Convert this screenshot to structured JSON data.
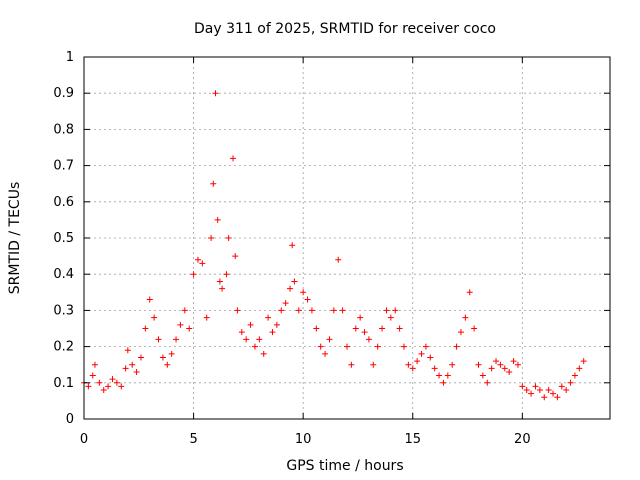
{
  "chart_data": {
    "type": "scatter",
    "title": "Day 311 of 2025, SRMTID for receiver coco",
    "xlabel": "GPS time / hours",
    "ylabel": "SRMTID / TECUs",
    "xlim": [
      0,
      24
    ],
    "ylim": [
      0,
      1
    ],
    "xticks": [
      0,
      5,
      10,
      15,
      20
    ],
    "xtick_labels": [
      "0",
      "5",
      "10",
      "15",
      "20"
    ],
    "yticks": [
      0,
      0.1,
      0.2,
      0.3,
      0.4,
      0.5,
      0.6,
      0.7,
      0.8,
      0.9,
      1
    ],
    "ytick_labels": [
      "0",
      "0.1",
      "0.2",
      "0.3",
      "0.4",
      "0.5",
      "0.6",
      "0.7",
      "0.8",
      "0.9",
      "1"
    ],
    "grid": true,
    "marker": "+",
    "color": "#ff0000",
    "series": [
      {
        "name": "SRMTID",
        "x": [
          0.0,
          0.2,
          0.4,
          0.5,
          0.7,
          0.9,
          1.1,
          1.3,
          1.5,
          1.7,
          1.9,
          2.0,
          2.2,
          2.4,
          2.6,
          2.8,
          3.0,
          3.2,
          3.4,
          3.6,
          3.8,
          4.0,
          4.2,
          4.4,
          4.6,
          4.8,
          5.0,
          5.2,
          5.4,
          5.6,
          5.8,
          5.9,
          6.0,
          6.1,
          6.2,
          6.3,
          6.5,
          6.6,
          6.8,
          6.9,
          7.0,
          7.2,
          7.4,
          7.6,
          7.8,
          8.0,
          8.2,
          8.4,
          8.6,
          8.8,
          9.0,
          9.2,
          9.4,
          9.5,
          9.6,
          9.8,
          10.0,
          10.2,
          10.4,
          10.6,
          10.8,
          11.0,
          11.2,
          11.4,
          11.6,
          11.8,
          12.0,
          12.2,
          12.4,
          12.6,
          12.8,
          13.0,
          13.2,
          13.4,
          13.6,
          13.8,
          14.0,
          14.2,
          14.4,
          14.6,
          14.8,
          15.0,
          15.2,
          15.4,
          15.6,
          15.8,
          16.0,
          16.2,
          16.4,
          16.6,
          16.8,
          17.0,
          17.2,
          17.4,
          17.6,
          17.8,
          18.0,
          18.2,
          18.4,
          18.6,
          18.8,
          19.0,
          19.2,
          19.4,
          19.6,
          19.8,
          20.0,
          20.2,
          20.4,
          20.6,
          20.8,
          21.0,
          21.2,
          21.4,
          21.6,
          21.8,
          22.0,
          22.2,
          22.4,
          22.6,
          22.8
        ],
        "y": [
          0.1,
          0.09,
          0.12,
          0.15,
          0.1,
          0.08,
          0.09,
          0.11,
          0.1,
          0.09,
          0.14,
          0.19,
          0.15,
          0.13,
          0.17,
          0.25,
          0.33,
          0.28,
          0.22,
          0.17,
          0.15,
          0.18,
          0.22,
          0.26,
          0.3,
          0.25,
          0.4,
          0.44,
          0.43,
          0.28,
          0.5,
          0.65,
          0.9,
          0.55,
          0.38,
          0.36,
          0.4,
          0.5,
          0.72,
          0.45,
          0.3,
          0.24,
          0.22,
          0.26,
          0.2,
          0.22,
          0.18,
          0.28,
          0.24,
          0.26,
          0.3,
          0.32,
          0.36,
          0.48,
          0.38,
          0.3,
          0.35,
          0.33,
          0.3,
          0.25,
          0.2,
          0.18,
          0.22,
          0.3,
          0.44,
          0.3,
          0.2,
          0.15,
          0.25,
          0.28,
          0.24,
          0.22,
          0.15,
          0.2,
          0.25,
          0.3,
          0.28,
          0.3,
          0.25,
          0.2,
          0.15,
          0.14,
          0.16,
          0.18,
          0.2,
          0.17,
          0.14,
          0.12,
          0.1,
          0.12,
          0.15,
          0.2,
          0.24,
          0.28,
          0.35,
          0.25,
          0.15,
          0.12,
          0.1,
          0.14,
          0.16,
          0.15,
          0.14,
          0.13,
          0.16,
          0.15,
          0.09,
          0.08,
          0.07,
          0.09,
          0.08,
          0.06,
          0.08,
          0.07,
          0.06,
          0.09,
          0.08,
          0.1,
          0.12,
          0.14,
          0.16
        ]
      }
    ]
  }
}
